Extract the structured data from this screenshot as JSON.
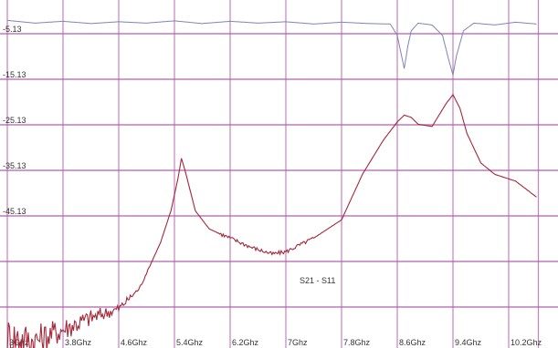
{
  "chart_data": {
    "type": "line",
    "title": "",
    "xlabel": "",
    "ylabel": "",
    "annotation": "S21 - S11",
    "grid": true,
    "xlim": [
      3.0,
      10.6
    ],
    "ylim": [
      -75.13,
      0.5
    ],
    "x_ticks": [
      {
        "value": 3.0,
        "label": "3Ghz"
      },
      {
        "value": 3.8,
        "label": "3.8Ghz"
      },
      {
        "value": 4.6,
        "label": "4.6Ghz"
      },
      {
        "value": 5.4,
        "label": "5.4Ghz"
      },
      {
        "value": 6.2,
        "label": "6.2Ghz"
      },
      {
        "value": 7.0,
        "label": "7Ghz"
      },
      {
        "value": 7.8,
        "label": "7.8Ghz"
      },
      {
        "value": 8.6,
        "label": "8.6Ghz"
      },
      {
        "value": 9.4,
        "label": "9.4Ghz"
      },
      {
        "value": 10.2,
        "label": "10.2Ghz"
      }
    ],
    "y_ticks": [
      {
        "value": -5.13,
        "label": "-5.13"
      },
      {
        "value": -15.13,
        "label": "-15.13"
      },
      {
        "value": -25.13,
        "label": "-25.13"
      },
      {
        "value": -35.13,
        "label": "-35.13"
      },
      {
        "value": -45.13,
        "label": "-45.13"
      }
    ],
    "y_grid_extra": [
      -55.13,
      -65.13,
      -75.13
    ],
    "series": [
      {
        "color": "#7a86b8",
        "x": [
          3.0,
          3.4,
          3.8,
          4.2,
          4.6,
          5.0,
          5.4,
          5.8,
          6.2,
          6.6,
          7.0,
          7.4,
          7.8,
          8.2,
          8.5,
          8.6,
          8.7,
          8.75,
          8.8,
          8.9,
          9.1,
          9.25,
          9.35,
          9.4,
          9.45,
          9.55,
          9.7,
          10.0,
          10.3,
          10.6
        ],
        "y": [
          -2.2,
          -2.8,
          -2.4,
          -2.9,
          -2.5,
          -2.8,
          -2.3,
          -2.9,
          -2.4,
          -2.8,
          -2.5,
          -3.0,
          -2.6,
          -2.9,
          -3.0,
          -5.5,
          -12.8,
          -8.0,
          -4.5,
          -2.8,
          -3.2,
          -5.5,
          -11.5,
          -14.2,
          -10.0,
          -4.5,
          -2.8,
          -3.2,
          -2.6,
          -3.0
        ]
      },
      {
        "color": "#a4283a",
        "x": [
          3.0,
          3.4,
          3.8,
          4.2,
          4.6,
          4.9,
          5.2,
          5.35,
          5.45,
          5.5,
          5.55,
          5.7,
          5.9,
          6.2,
          6.5,
          6.8,
          7.0,
          7.4,
          7.8,
          8.1,
          8.4,
          8.6,
          8.7,
          8.8,
          8.9,
          9.1,
          9.3,
          9.4,
          9.5,
          9.6,
          9.8,
          10.0,
          10.3,
          10.6
        ],
        "y": [
          -71.5,
          -72.5,
          -70.0,
          -67.5,
          -65.5,
          -61.0,
          -51.0,
          -44.0,
          -37.0,
          -32.5,
          -35.0,
          -44.0,
          -48.0,
          -50.0,
          -52.0,
          -53.5,
          -53.0,
          -50.0,
          -46.0,
          -36.0,
          -28.5,
          -24.5,
          -23.0,
          -23.5,
          -25.0,
          -25.5,
          -20.5,
          -18.5,
          -21.5,
          -27.0,
          -33.5,
          -36.0,
          -37.5,
          -41.0
        ]
      }
    ]
  }
}
